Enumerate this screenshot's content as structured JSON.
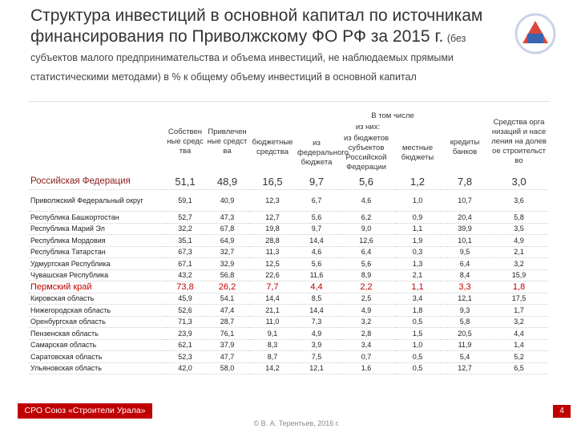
{
  "header": {
    "title": "Структура инвестиций в основной капитал по источникам финансирования по Приволжскому ФО РФ за 2015 г.",
    "subtitle": "(без субъектов малого предпринимательства и объема инвестиций, не наблюдаемых прямыми статистическими методами) в % к общему объему инвестиций в основной капитал"
  },
  "table": {
    "columns": {
      "own": "Собственные средства",
      "attracted": "Привлеченные средства",
      "including": "В том числе",
      "of_which": "из них:",
      "budget": "бюджетные средства",
      "federal": "из федерального бюджета",
      "regional": "из бюджетов субъектов Российской Федерации",
      "local": "местные бюджеты",
      "credits": "кредиты банков",
      "shared": "Средства организаций и населения на долевое строительство"
    },
    "rows": [
      [
        "Российская Федерация",
        "51,1",
        "48,9",
        "16,5",
        "9,7",
        "5,6",
        "1,2",
        "7,8",
        "3,0"
      ],
      [
        "Приволжский Федеральный округ",
        "59,1",
        "40,9",
        "12,3",
        "6,7",
        "4,6",
        "1,0",
        "10,7",
        "3,6"
      ],
      [
        "Республика Башкортостан",
        "52,7",
        "47,3",
        "12,7",
        "5,6",
        "6,2",
        "0,9",
        "20,4",
        "5,8"
      ],
      [
        "Республика Марий Эл",
        "32,2",
        "67,8",
        "19,8",
        "9,7",
        "9,0",
        "1,1",
        "39,9",
        "3,5"
      ],
      [
        "Республика Мордовия",
        "35,1",
        "64,9",
        "28,8",
        "14,4",
        "12,6",
        "1,9",
        "10,1",
        "4,9"
      ],
      [
        "Республика Татарстан",
        "67,3",
        "32,7",
        "11,3",
        "4,6",
        "6,4",
        "0,3",
        "9,5",
        "2,1"
      ],
      [
        "Удмуртская Республика",
        "67,1",
        "32,9",
        "12,5",
        "5,6",
        "5,6",
        "1,3",
        "6,4",
        "3,2"
      ],
      [
        "Чувашская Республика",
        "43,2",
        "56,8",
        "22,6",
        "11,6",
        "8,9",
        "2,1",
        "8,4",
        "15,9"
      ],
      [
        "Пермский край",
        "73,8",
        "26,2",
        "7,7",
        "4,4",
        "2,2",
        "1,1",
        "3,3",
        "1,8"
      ],
      [
        "Кировская область",
        "45,9",
        "54,1",
        "14,4",
        "8,5",
        "2,5",
        "3,4",
        "12,1",
        "17,5"
      ],
      [
        "Нижегородская область",
        "52,6",
        "47,4",
        "21,1",
        "14,4",
        "4,9",
        "1,8",
        "9,3",
        "1,7"
      ],
      [
        "Оренбургская область",
        "71,3",
        "28,7",
        "11,0",
        "7,3",
        "3,2",
        "0,5",
        "5,8",
        "3,2"
      ],
      [
        "Пензенская область",
        "23,9",
        "76,1",
        "9,1",
        "4,9",
        "2,8",
        "1,5",
        "20,5",
        "4,4"
      ],
      [
        "Самарская область",
        "62,1",
        "37,9",
        "8,3",
        "3,9",
        "3,4",
        "1,0",
        "11,9",
        "1,4"
      ],
      [
        "Саратовская область",
        "52,3",
        "47,7",
        "8,7",
        "7,5",
        "0,7",
        "0,5",
        "5,4",
        "5,2"
      ],
      [
        "Ульяновская область",
        "42,0",
        "58,0",
        "14,2",
        "12,1",
        "1,6",
        "0,5",
        "12,7",
        "6,5"
      ]
    ]
  },
  "footer": {
    "organization": "СРО Союз «Строители Урала»",
    "copyright": "© В. А. Терентьев, 2016 г.",
    "page": "4"
  }
}
